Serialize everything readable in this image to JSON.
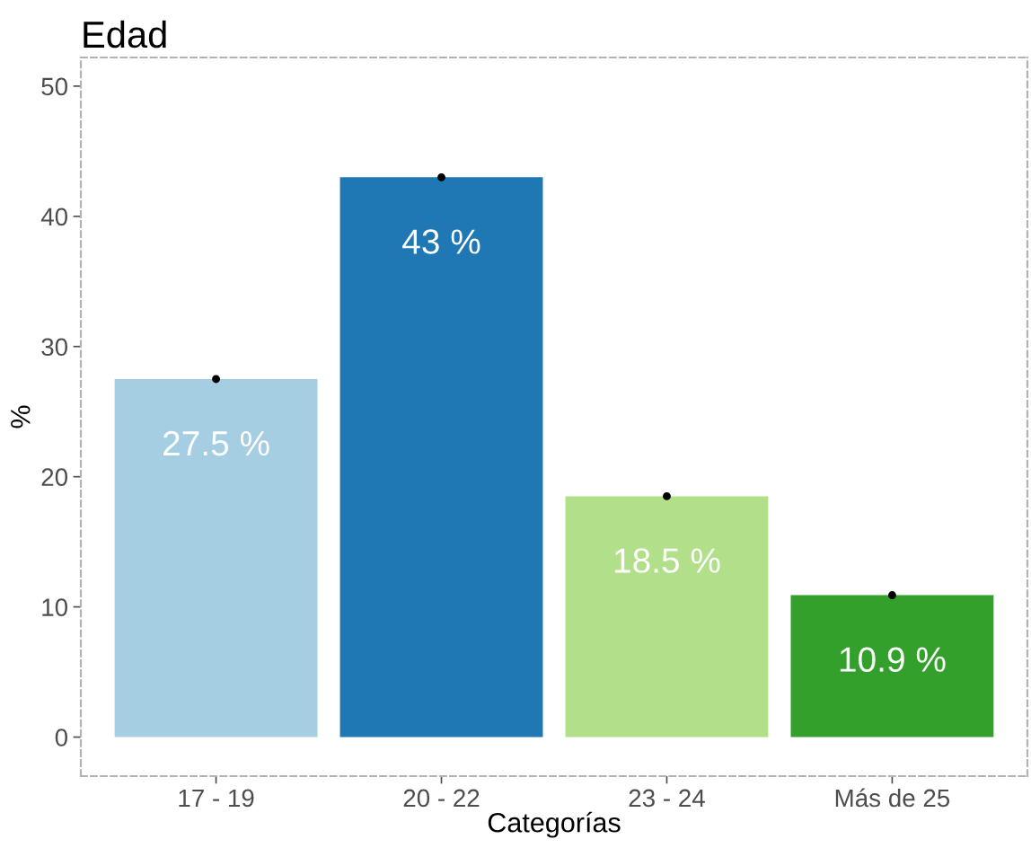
{
  "chart_data": {
    "type": "bar",
    "title": "Edad",
    "xlabel": "Categorías",
    "ylabel": "%",
    "categories": [
      "17 - 19",
      "20 - 22",
      "23 - 24",
      "Más de 25"
    ],
    "series": [
      {
        "colors": [
          "#a6cee3",
          "#1f78b4",
          "#b2df8a",
          "#33a02c"
        ],
        "values": [
          27.5,
          43,
          18.5,
          10.9
        ],
        "value_labels": [
          "27.5 %",
          "43 %",
          "18.5 %",
          "10.9 %"
        ]
      },
      {
        "type": "scatter",
        "color": "#000000",
        "marker": "circle",
        "x": [
          "17 - 19",
          "20 - 22",
          "23 - 24",
          "Más de 25"
        ],
        "values": [
          27.5,
          43,
          18.5,
          10.9
        ]
      }
    ],
    "ylim": [
      -3,
      52.2
    ],
    "yticks": [
      0,
      10,
      20,
      30,
      40,
      50
    ],
    "grid": false,
    "legend": false
  }
}
